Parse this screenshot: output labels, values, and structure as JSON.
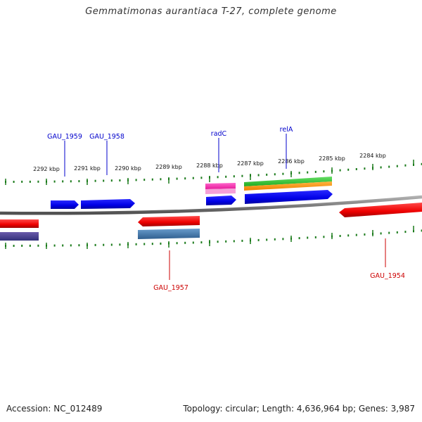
{
  "title": "Gemmatimonas aurantiaca T-27, complete genome",
  "footer": {
    "accession": "Accession: NC_012489",
    "summary": "Topology: circular; Length: 4,636,964 bp; Genes: 3,987"
  },
  "scale": {
    "labels": [
      "2292 kbp",
      "2291 kbp",
      "2290 kbp",
      "2289 kbp",
      "2288 kbp",
      "2287 kbp",
      "2286 kbp",
      "2285 kbp",
      "2284 kbp"
    ]
  },
  "gene_labels": {
    "top": [
      "GAU_1959",
      "GAU_1958",
      "radC",
      "relA"
    ],
    "bottom": [
      "GAU_1957",
      "GAU_1954"
    ]
  },
  "colors": {
    "forward": "#0000ee",
    "reverse": "#ee0000",
    "backbone": "#808080",
    "tick": "#1a7a1a"
  }
}
